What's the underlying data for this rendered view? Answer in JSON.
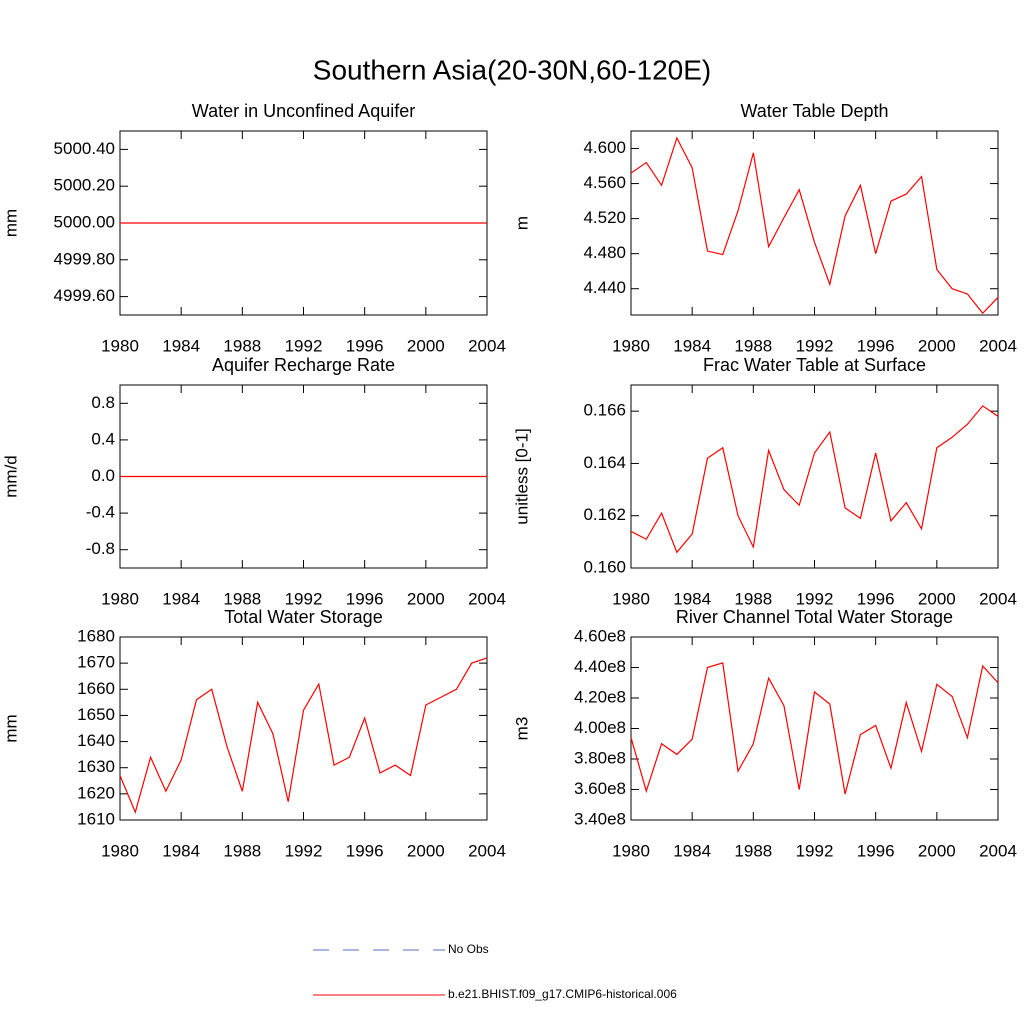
{
  "title": "Southern Asia(20-30N,60-120E)",
  "chart_data": [
    {
      "type": "line",
      "title": "Water in Unconfined Aquifer",
      "ylabel": "mm",
      "color": "#ff0000",
      "x": [
        1980,
        1981,
        1982,
        1983,
        1984,
        1985,
        1986,
        1987,
        1988,
        1989,
        1990,
        1991,
        1992,
        1993,
        1994,
        1995,
        1996,
        1997,
        1998,
        1999,
        2000,
        2001,
        2002,
        2003,
        2004
      ],
      "values": [
        5000,
        5000,
        5000,
        5000,
        5000,
        5000,
        5000,
        5000,
        5000,
        5000,
        5000,
        5000,
        5000,
        5000,
        5000,
        5000,
        5000,
        5000,
        5000,
        5000,
        5000,
        5000,
        5000,
        5000,
        5000
      ],
      "xlim": [
        1980,
        2004
      ],
      "xticks": [
        1980,
        1984,
        1988,
        1992,
        1996,
        2000,
        2004
      ],
      "ylim": [
        4999.5,
        5000.5
      ],
      "yticks": [
        {
          "value": 4999.6,
          "label": "4999.60"
        },
        {
          "value": 4999.8,
          "label": "4999.80"
        },
        {
          "value": 5000,
          "label": "5000.00"
        },
        {
          "value": 5000.2,
          "label": "5000.20"
        },
        {
          "value": 5000.4,
          "label": "5000.40"
        }
      ]
    },
    {
      "type": "line",
      "title": "Water Table Depth",
      "ylabel": "m",
      "color": "#ff0000",
      "x": [
        1980,
        1981,
        1982,
        1983,
        1984,
        1985,
        1986,
        1987,
        1988,
        1989,
        1990,
        1991,
        1992,
        1993,
        1994,
        1995,
        1996,
        1997,
        1998,
        1999,
        2000,
        2001,
        2002,
        2003,
        2004
      ],
      "values": [
        4.572,
        4.584,
        4.558,
        4.612,
        4.578,
        4.483,
        4.479,
        4.529,
        4.595,
        4.488,
        4.521,
        4.553,
        4.493,
        4.445,
        4.523,
        4.558,
        4.48,
        4.54,
        4.548,
        4.568,
        4.462,
        4.44,
        4.434,
        4.412,
        4.43
      ],
      "xlim": [
        1980,
        2004
      ],
      "xticks": [
        1980,
        1984,
        1988,
        1992,
        1996,
        2000,
        2004
      ],
      "ylim": [
        4.41,
        4.62
      ],
      "yticks": [
        {
          "value": 4.44,
          "label": "4.440"
        },
        {
          "value": 4.48,
          "label": "4.480"
        },
        {
          "value": 4.52,
          "label": "4.520"
        },
        {
          "value": 4.56,
          "label": "4.560"
        },
        {
          "value": 4.6,
          "label": "4.600"
        }
      ]
    },
    {
      "type": "line",
      "title": "Aquifer Recharge Rate",
      "ylabel": "mm/d",
      "color": "#ff0000",
      "x": [
        1980,
        1981,
        1982,
        1983,
        1984,
        1985,
        1986,
        1987,
        1988,
        1989,
        1990,
        1991,
        1992,
        1993,
        1994,
        1995,
        1996,
        1997,
        1998,
        1999,
        2000,
        2001,
        2002,
        2003,
        2004
      ],
      "values": [
        0,
        0,
        0,
        0,
        0,
        0,
        0,
        0,
        0,
        0,
        0,
        0,
        0,
        0,
        0,
        0,
        0,
        0,
        0,
        0,
        0,
        0,
        0,
        0,
        0
      ],
      "xlim": [
        1980,
        2004
      ],
      "xticks": [
        1980,
        1984,
        1988,
        1992,
        1996,
        2000,
        2004
      ],
      "ylim": [
        -1,
        1
      ],
      "yticks": [
        -0.8,
        -0.4,
        {
          "value": 0,
          "label": "0.0"
        },
        0.4,
        0.8
      ]
    },
    {
      "type": "line",
      "title": "Frac Water Table at Surface",
      "ylabel": "unitless [0-1]",
      "color": "#ff0000",
      "x": [
        1980,
        1981,
        1982,
        1983,
        1984,
        1985,
        1986,
        1987,
        1988,
        1989,
        1990,
        1991,
        1992,
        1993,
        1994,
        1995,
        1996,
        1997,
        1998,
        1999,
        2000,
        2001,
        2002,
        2003,
        2004
      ],
      "values": [
        0.1614,
        0.1611,
        0.1621,
        0.1606,
        0.1613,
        0.1642,
        0.1646,
        0.162,
        0.1608,
        0.1645,
        0.163,
        0.1624,
        0.1644,
        0.1652,
        0.1623,
        0.1619,
        0.1644,
        0.1618,
        0.1625,
        0.1615,
        0.1646,
        0.165,
        0.1655,
        0.1662,
        0.1658
      ],
      "xlim": [
        1980,
        2004
      ],
      "xticks": [
        1980,
        1984,
        1988,
        1992,
        1996,
        2000,
        2004
      ],
      "ylim": [
        0.16,
        0.167
      ],
      "yticks": [
        {
          "value": 0.16,
          "label": "0.160"
        },
        {
          "value": 0.162,
          "label": "0.162"
        },
        {
          "value": 0.164,
          "label": "0.164"
        },
        {
          "value": 0.166,
          "label": "0.166"
        }
      ]
    },
    {
      "type": "line",
      "title": "Total Water Storage",
      "ylabel": "mm",
      "color": "#ff0000",
      "x": [
        1980,
        1981,
        1982,
        1983,
        1984,
        1985,
        1986,
        1987,
        1988,
        1989,
        1990,
        1991,
        1992,
        1993,
        1994,
        1995,
        1996,
        1997,
        1998,
        1999,
        2000,
        2001,
        2002,
        2003,
        2004
      ],
      "values": [
        1627,
        1613,
        1634,
        1621,
        1633,
        1656,
        1660,
        1638,
        1621,
        1655,
        1643,
        1617,
        1652,
        1662,
        1631,
        1634,
        1649,
        1628,
        1631,
        1627,
        1654,
        1657,
        1660,
        1670,
        1672
      ],
      "xlim": [
        1980,
        2004
      ],
      "xticks": [
        1980,
        1984,
        1988,
        1992,
        1996,
        2000,
        2004
      ],
      "ylim": [
        1610,
        1680
      ],
      "yticks": [
        1610,
        1620,
        1630,
        1640,
        1650,
        1660,
        1670,
        1680
      ]
    },
    {
      "type": "line",
      "title": "River Channel Total Water Storage",
      "ylabel": "m3",
      "color": "#ff0000",
      "x": [
        1980,
        1981,
        1982,
        1983,
        1984,
        1985,
        1986,
        1987,
        1988,
        1989,
        1990,
        1991,
        1992,
        1993,
        1994,
        1995,
        1996,
        1997,
        1998,
        1999,
        2000,
        2001,
        2002,
        2003,
        2004
      ],
      "values": [
        394000000,
        359000000,
        390000000,
        383000000,
        393000000,
        440000000,
        443000000,
        372000000,
        390000000,
        433000000,
        415000000,
        360000000,
        424000000,
        416000000,
        357000000,
        396000000,
        402000000,
        374000000,
        417000000,
        385000000,
        429000000,
        421000000,
        394000000,
        441000000,
        430000000
      ],
      "xlim": [
        1980,
        2004
      ],
      "xticks": [
        1980,
        1984,
        1988,
        1992,
        1996,
        2000,
        2004
      ],
      "ylim": [
        340000000,
        460000000
      ],
      "yticks": [
        {
          "value": 340000000,
          "label": "3.40e8"
        },
        {
          "value": 360000000,
          "label": "3.60e8"
        },
        {
          "value": 380000000,
          "label": "3.80e8"
        },
        {
          "value": 400000000,
          "label": "4.00e8"
        },
        {
          "value": 420000000,
          "label": "4.20e8"
        },
        {
          "value": 440000000,
          "label": "4.40e8"
        },
        {
          "value": 460000000,
          "label": "4.60e8"
        }
      ]
    }
  ],
  "legend": [
    {
      "name": "No Obs",
      "color": "#5a6fc0",
      "dash": true
    },
    {
      "name": "b.e21.BHIST.f09_g17.CMIP6-historical.006",
      "color": "#ff0000",
      "dash": false
    }
  ]
}
